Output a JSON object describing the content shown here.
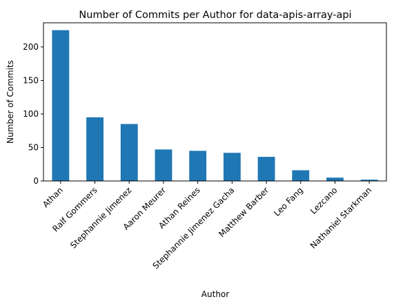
{
  "chart_data": {
    "type": "bar",
    "title": "Number of Commits per Author for data-apis-array-api",
    "xlabel": "Author",
    "ylabel": "Number of Commits",
    "categories": [
      "Athan",
      "Ralf Gommers",
      "Stephannie Jimenez",
      "Aaron Meurer",
      "Athan Reines",
      "Stephannie Jimenez Gacha",
      "Matthew Barber",
      "Leo Fang",
      "Lezcano",
      "Nathaniel Starkman"
    ],
    "values": [
      225,
      95,
      85,
      47,
      45,
      42,
      36,
      16,
      5,
      2
    ],
    "ylim": [
      0,
      236
    ],
    "yticks": [
      0,
      50,
      100,
      150,
      200
    ],
    "grid": false,
    "bar_color": "#1f77b4"
  }
}
